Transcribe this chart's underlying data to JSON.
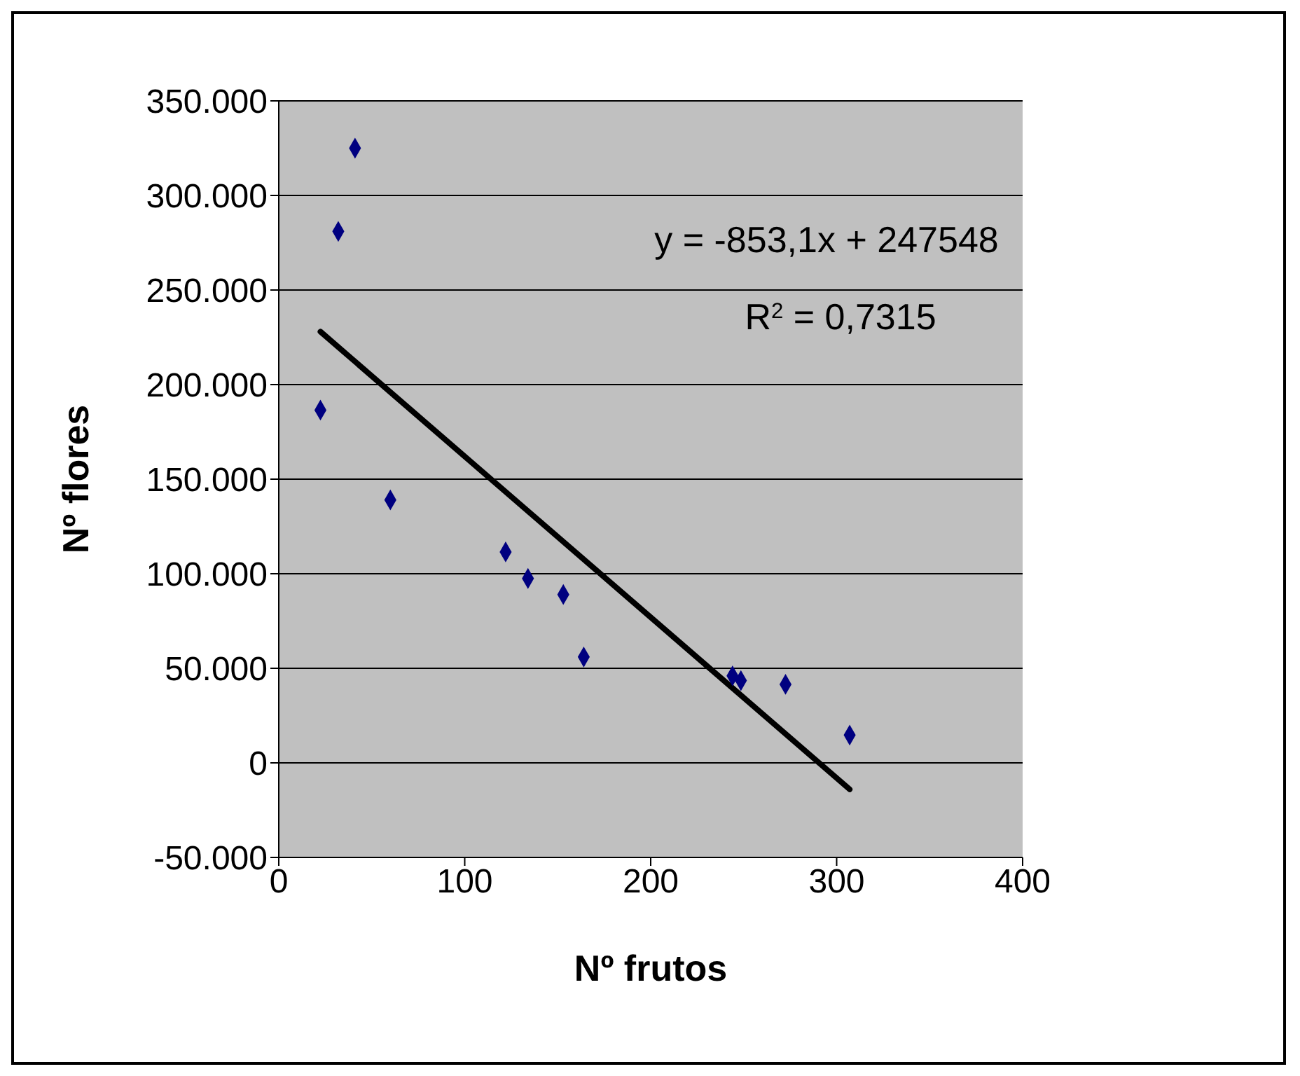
{
  "chart_data": {
    "type": "scatter",
    "xlabel": "Nº frutos",
    "ylabel": "Nº flores",
    "series": [
      {
        "color": "#000080",
        "marker": "diamond",
        "x": [
          22.4,
          32,
          41,
          60,
          122,
          134,
          153,
          164,
          244,
          248.5,
          272.5,
          307
        ],
        "values": [
          186500,
          281000,
          325000,
          139000,
          111500,
          97500,
          89000,
          56000,
          46000,
          43500,
          41500,
          14700
        ]
      },
      {
        "type": "line",
        "color": "#000000",
        "marker": "none",
        "x": [
          22.4,
          307
        ],
        "values": [
          228000,
          -14000
        ]
      }
    ],
    "xlim": [
      0,
      400
    ],
    "xticks": [
      0,
      100,
      200,
      300,
      400
    ],
    "ylim": [
      -50000,
      350000
    ],
    "yticks": [
      {
        "value": -50000,
        "label": "-50.000"
      },
      {
        "value": 0,
        "label": "0"
      },
      {
        "value": 50000,
        "label": "50.000"
      },
      {
        "value": 100000,
        "label": "100.000"
      },
      {
        "value": 150000,
        "label": "150.000"
      },
      {
        "value": 200000,
        "label": "200.000"
      },
      {
        "value": 250000,
        "label": "250.000"
      },
      {
        "value": 300000,
        "label": "300.000"
      },
      {
        "value": 350000,
        "label": "350.000"
      }
    ],
    "grid": "y",
    "annotations": [
      "y = -853,1x + 247548",
      "R$^{2}$ = 0,7315"
    ]
  }
}
